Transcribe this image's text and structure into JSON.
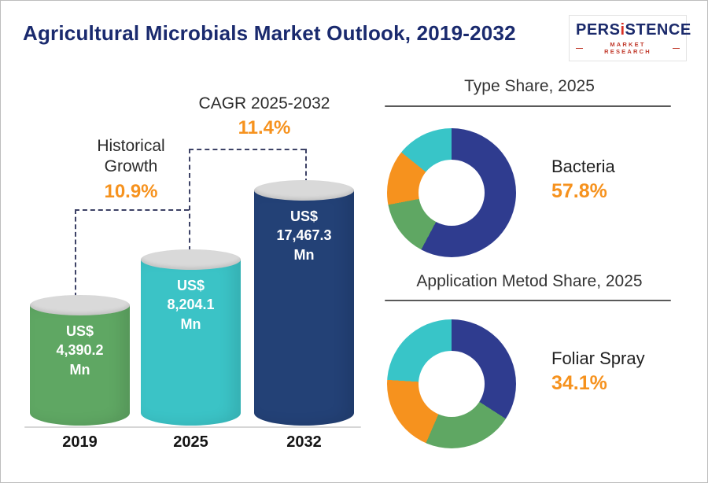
{
  "page": {
    "title": "Agricultural Microbials Market Outlook, 2019-2032",
    "logo": {
      "brand_prefix": "PERS",
      "brand_i": "i",
      "brand_suffix": "STENCE",
      "tagline": "MARKET RESEARCH"
    }
  },
  "bar_chart": {
    "historical": {
      "label": "Historical\nGrowth",
      "value": "10.9%"
    },
    "cagr": {
      "label": "CAGR 2025-2032",
      "value": "11.4%"
    },
    "bars": [
      {
        "year": "2019",
        "label": "US$\n4,390.2\nMn",
        "value": 4390.2,
        "color": "#5fa763",
        "display_height": 166
      },
      {
        "year": "2025",
        "label": "US$\n8,204.1\nMn",
        "value": 8204.1,
        "color": "#3bc3c6",
        "display_height": 224
      },
      {
        "year": "2032",
        "label": "US$\n17,467.3\nMn",
        "value": 17467.3,
        "color": "#234176",
        "display_height": 312
      }
    ]
  },
  "donuts": [
    {
      "title": "Type Share, 2025",
      "callout_label": "Bacteria",
      "callout_value": "57.8%",
      "segments": [
        {
          "label": "Bacteria",
          "percent": 57.8,
          "color": "#2f3c8f"
        },
        {
          "percent": 14.2,
          "color": "#5fa763"
        },
        {
          "percent": 13.8,
          "color": "#f6921e"
        },
        {
          "percent": 14.2,
          "color": "#38c5c8"
        }
      ]
    },
    {
      "title": "Application Metod Share, 2025",
      "callout_label": "Foliar Spray",
      "callout_value": "34.1%",
      "segments": [
        {
          "label": "Foliar Spray",
          "percent": 34.1,
          "color": "#2f3c8f"
        },
        {
          "percent": 22.4,
          "color": "#5fa763"
        },
        {
          "percent": 19.5,
          "color": "#f6921e"
        },
        {
          "percent": 24.0,
          "color": "#38c5c8"
        }
      ]
    }
  ],
  "colors": {
    "accent_orange": "#f6921e",
    "navy": "#1a2a6e"
  },
  "chart_data": [
    {
      "type": "bar",
      "title": "Agricultural Microbials Market Outlook, 2019-2032",
      "categories": [
        "2019",
        "2025",
        "2032"
      ],
      "values": [
        4390.2,
        8204.1,
        17467.3
      ],
      "value_labels": [
        "US$ 4,390.2 Mn",
        "US$ 8,204.1 Mn",
        "US$ 17,467.3 Mn"
      ],
      "ylabel": "US$ Mn",
      "annotations": [
        {
          "label": "Historical Growth",
          "value": "10.9%",
          "between": [
            "2019",
            "2025"
          ]
        },
        {
          "label": "CAGR 2025-2032",
          "value": "11.4%",
          "between": [
            "2025",
            "2032"
          ]
        }
      ],
      "legend_position": "none",
      "grid": false
    },
    {
      "type": "pie",
      "title": "Type Share, 2025",
      "labels": [
        "Bacteria",
        "",
        "",
        ""
      ],
      "values": [
        57.8,
        14.2,
        13.8,
        14.2
      ],
      "colors": [
        "#2f3c8f",
        "#5fa763",
        "#f6921e",
        "#38c5c8"
      ],
      "highlight": {
        "label": "Bacteria",
        "value": "57.8%"
      }
    },
    {
      "type": "pie",
      "title": "Application Metod Share, 2025",
      "labels": [
        "Foliar Spray",
        "",
        "",
        ""
      ],
      "values": [
        34.1,
        22.4,
        19.5,
        24.0
      ],
      "colors": [
        "#2f3c8f",
        "#5fa763",
        "#f6921e",
        "#38c5c8"
      ],
      "highlight": {
        "label": "Foliar Spray",
        "value": "34.1%"
      }
    }
  ]
}
